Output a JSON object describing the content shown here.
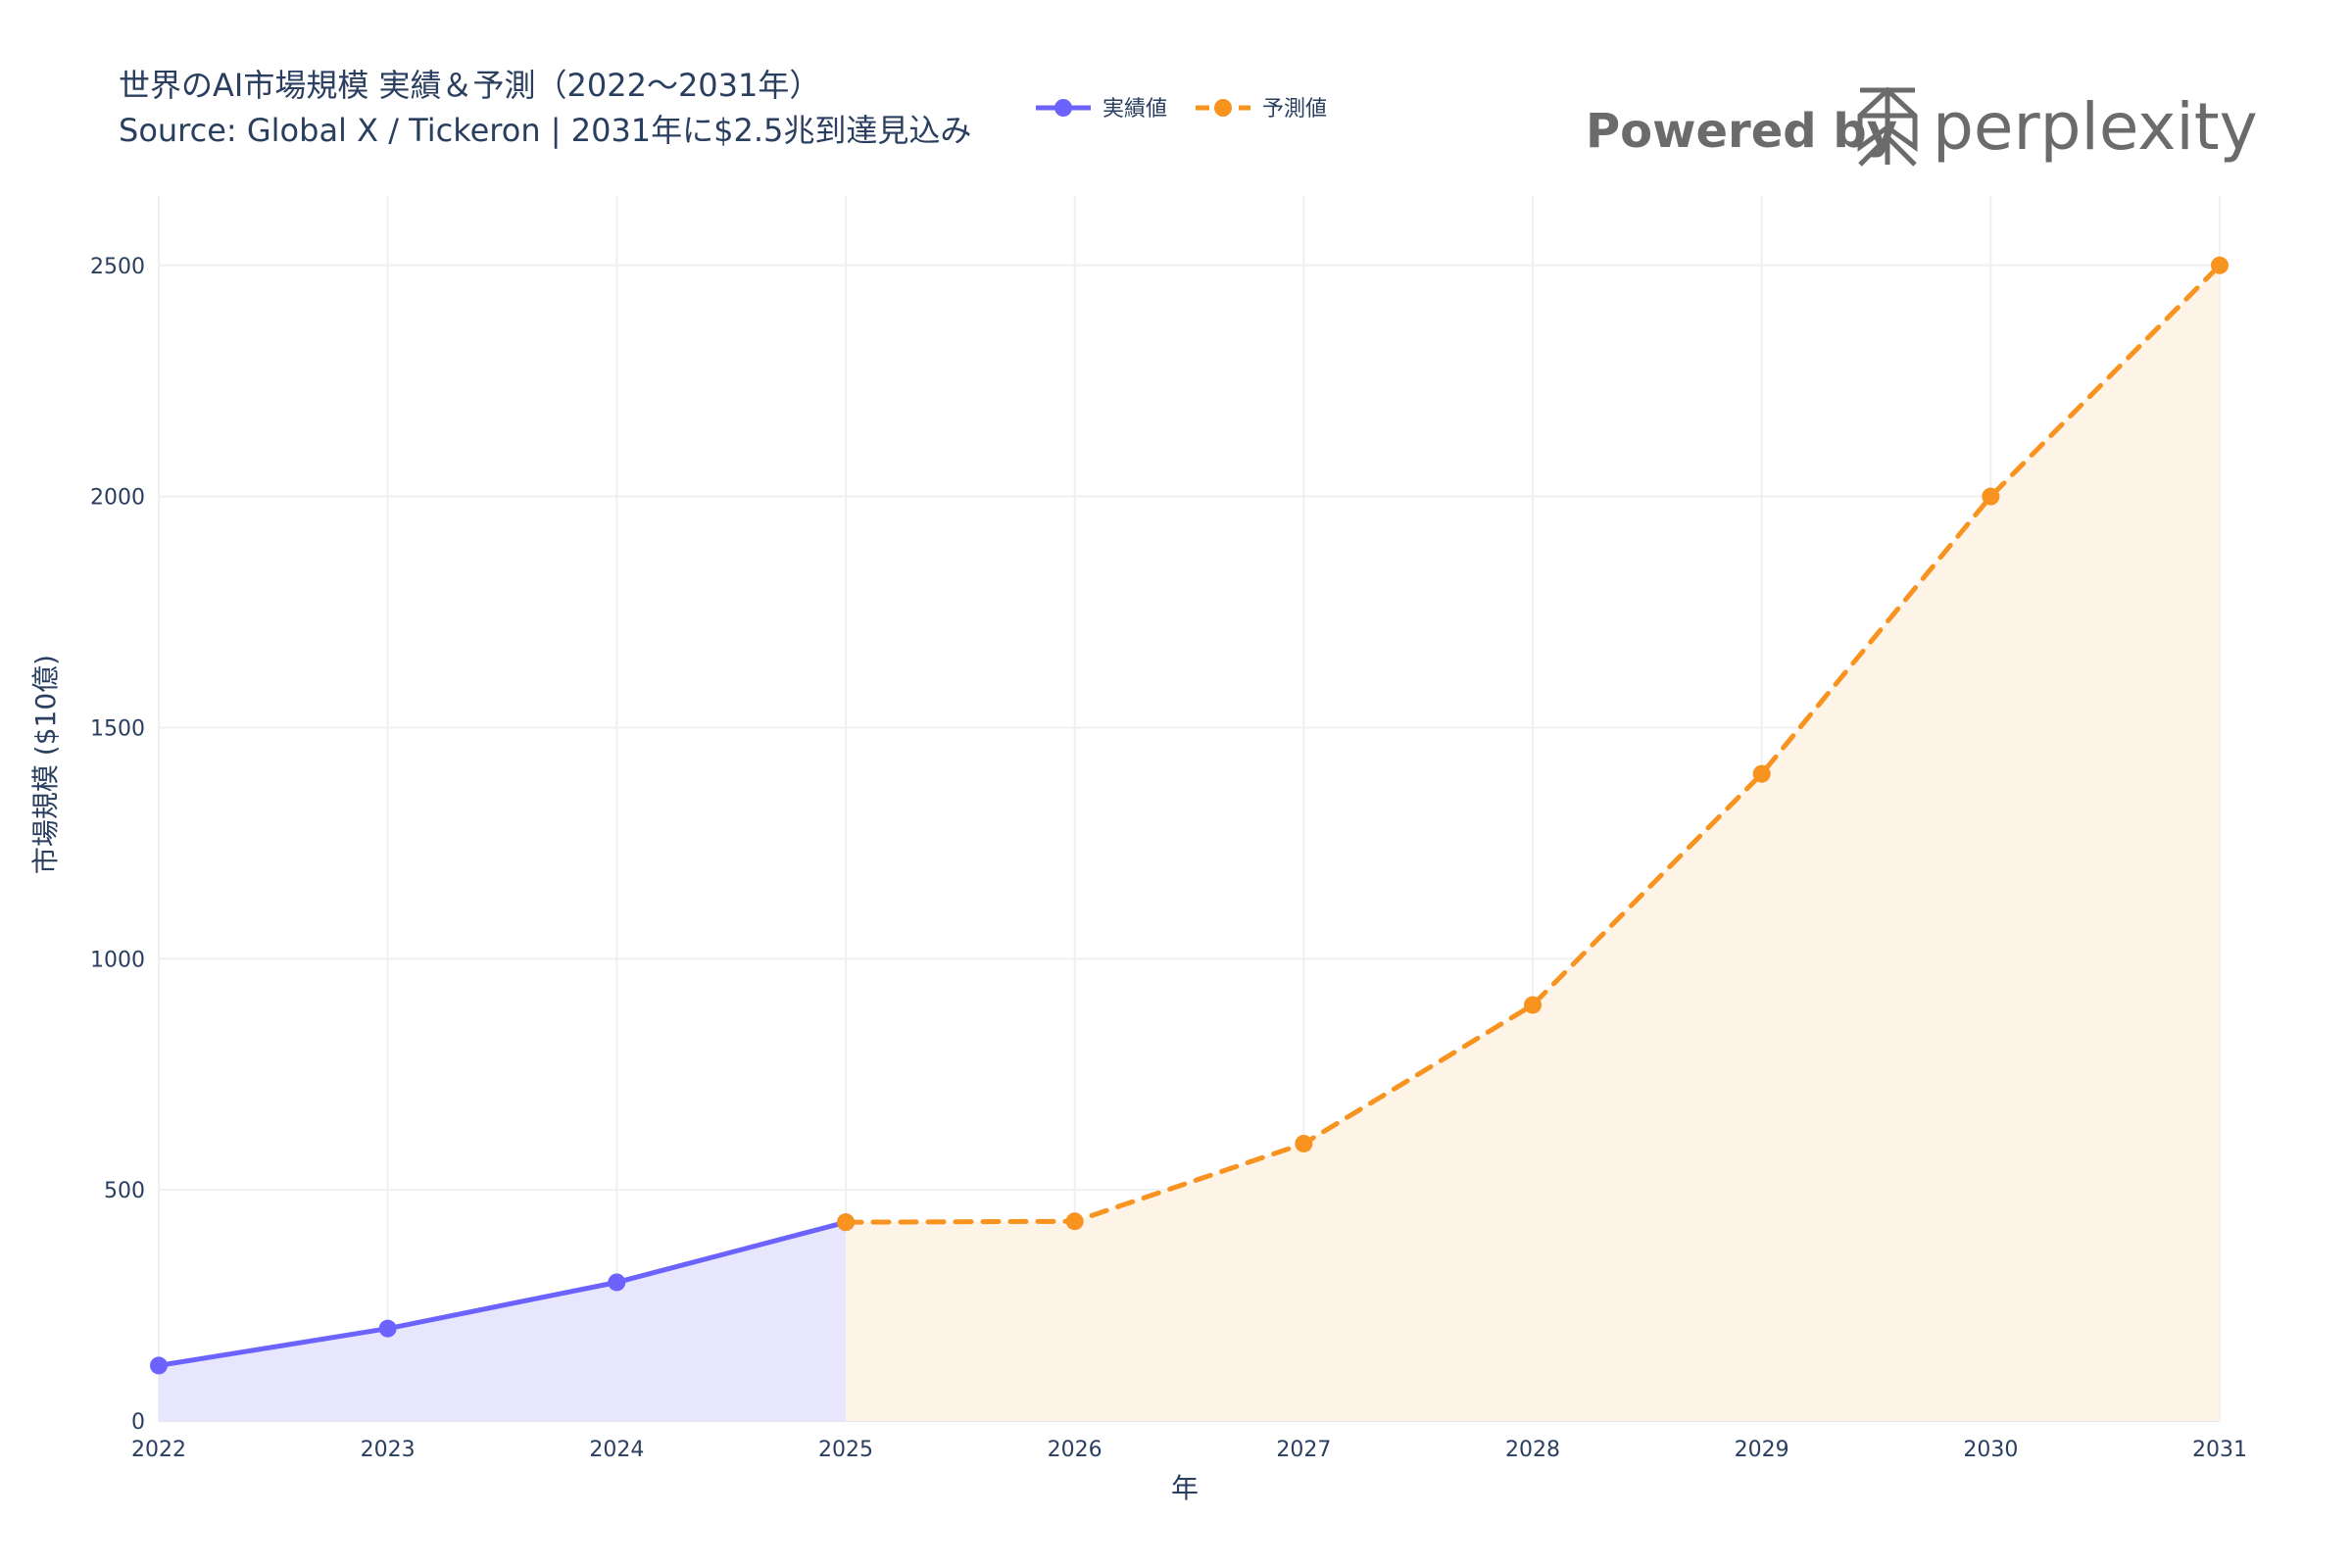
{
  "title": "世界のAI市場規模 実績＆予測（2022〜2031年）",
  "subtitle": "Source: Global X / Tickeron | 2031年に$2.5兆到達見込み",
  "branding": {
    "powered_by": "Powered by",
    "brand": "perplexity",
    "icon": "perplexity-logo-icon"
  },
  "colors": {
    "actual": "#6c63ff",
    "forecast": "#f7931e",
    "actual_fill": "#e8e6fd",
    "forecast_fill": "#fdf3e7",
    "grid": "#eef0f4",
    "text": "#2a3f5f"
  },
  "chart_data": {
    "type": "line",
    "xlabel": "年",
    "ylabel": "市場規模 ($10億)",
    "ylim": [
      0,
      2650
    ],
    "xlim": [
      2022,
      2031
    ],
    "x_ticks": [
      "2022",
      "2023",
      "2024",
      "2025",
      "2026",
      "2027",
      "2028",
      "2029",
      "2030",
      "2031"
    ],
    "y_ticks": [
      "0",
      "500",
      "1000",
      "1500",
      "2000",
      "2500"
    ],
    "grid": true,
    "legend_position": "top-center",
    "series": [
      {
        "name": "実績値",
        "style": "solid",
        "fill": "to-zero",
        "x": [
          2022,
          2023,
          2024,
          2025
        ],
        "y": [
          120,
          200,
          300,
          430
        ]
      },
      {
        "name": "予測値",
        "style": "dashed",
        "fill": "to-zero",
        "x": [
          2025,
          2026,
          2027,
          2028,
          2029,
          2030,
          2031
        ],
        "y": [
          430,
          432,
          600,
          900,
          1400,
          2000,
          2500
        ]
      }
    ]
  }
}
